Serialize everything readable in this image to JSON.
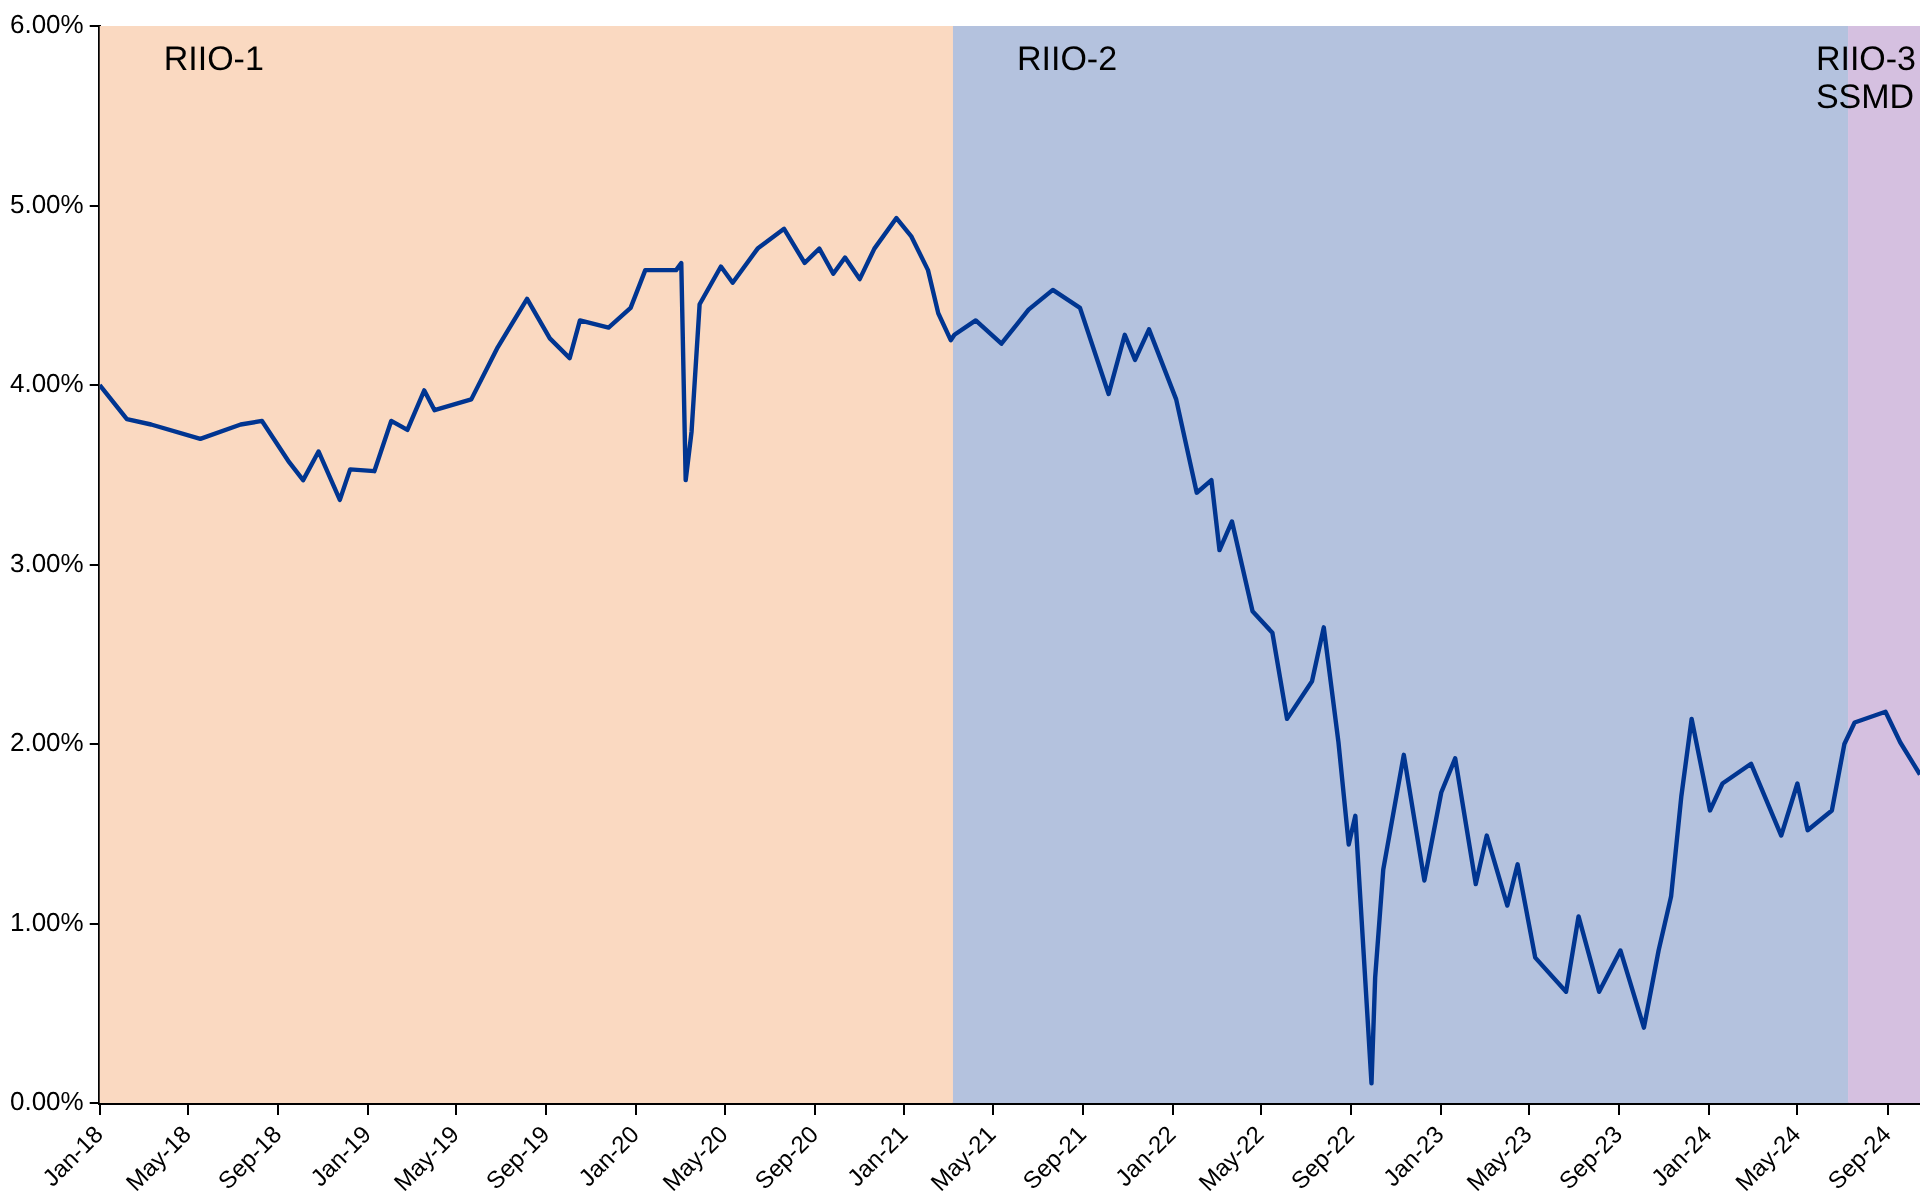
{
  "chart_data": {
    "type": "line",
    "x": [
      "2018-01-01",
      "2018-02-07",
      "2018-03-12",
      "2018-05-18",
      "2018-07-12",
      "2018-08-10",
      "2018-09-16",
      "2018-10-05",
      "2018-10-26",
      "2018-11-24",
      "2018-12-08",
      "2019-01-10",
      "2019-02-02",
      "2019-02-24",
      "2019-03-19",
      "2019-04-02",
      "2019-05-22",
      "2019-06-27",
      "2019-08-06",
      "2019-09-06",
      "2019-10-03",
      "2019-10-17",
      "2019-11-25",
      "2019-12-25",
      "2020-01-14",
      "2020-02-25",
      "2020-03-03",
      "2020-03-09",
      "2020-03-17",
      "2020-03-28",
      "2020-04-26",
      "2020-05-12",
      "2020-06-15",
      "2020-07-21",
      "2020-08-18",
      "2020-09-07",
      "2020-09-26",
      "2020-10-12",
      "2020-11-01",
      "2020-11-21",
      "2020-12-21",
      "2021-01-10",
      "2021-02-02",
      "2021-02-16",
      "2021-03-05",
      "2021-03-10",
      "2021-04-08",
      "2021-05-13",
      "2021-06-19",
      "2021-07-22",
      "2021-08-28",
      "2021-10-06",
      "2021-10-28",
      "2021-11-11",
      "2021-11-30",
      "2022-01-06",
      "2022-02-03",
      "2022-02-23",
      "2022-03-06",
      "2022-03-23",
      "2022-04-20",
      "2022-05-17",
      "2022-06-06",
      "2022-07-10",
      "2022-07-26",
      "2022-08-15",
      "2022-08-29",
      "2022-09-07",
      "2022-09-29",
      "2022-10-04",
      "2022-10-15",
      "2022-11-12",
      "2022-12-10",
      "2023-01-02",
      "2023-01-21",
      "2023-02-18",
      "2023-03-05",
      "2023-04-02",
      "2023-04-16",
      "2023-05-10",
      "2023-06-21",
      "2023-07-08",
      "2023-08-05",
      "2023-09-03",
      "2023-10-05",
      "2023-10-25",
      "2023-11-11",
      "2023-11-25",
      "2023-12-09",
      "2024-01-03",
      "2024-01-20",
      "2024-02-28",
      "2024-04-09",
      "2024-05-01",
      "2024-05-15",
      "2024-06-17",
      "2024-07-04",
      "2024-07-18",
      "2024-08-29",
      "2024-09-18",
      "2024-10-15"
    ],
    "series": [
      {
        "color": "#003591",
        "values": [
          4.0,
          3.81,
          3.78,
          3.7,
          3.78,
          3.8,
          3.57,
          3.47,
          3.63,
          3.36,
          3.53,
          3.52,
          3.8,
          3.75,
          3.97,
          3.86,
          3.92,
          4.21,
          4.48,
          4.26,
          4.15,
          4.36,
          4.32,
          4.43,
          4.64,
          4.64,
          4.68,
          3.47,
          3.74,
          4.45,
          4.66,
          4.57,
          4.76,
          4.87,
          4.68,
          4.76,
          4.62,
          4.71,
          4.59,
          4.76,
          4.93,
          4.83,
          4.64,
          4.4,
          4.25,
          4.28,
          4.36,
          4.23,
          4.42,
          4.53,
          4.43,
          3.95,
          4.28,
          4.14,
          4.31,
          3.92,
          3.4,
          3.47,
          3.08,
          3.24,
          2.74,
          2.62,
          2.14,
          2.35,
          2.65,
          2.01,
          1.44,
          1.6,
          0.11,
          0.7,
          1.3,
          1.94,
          1.24,
          1.73,
          1.92,
          1.22,
          1.49,
          1.1,
          1.33,
          0.81,
          0.62,
          1.04,
          0.62,
          0.85,
          0.42,
          0.85,
          1.15,
          1.71,
          2.14,
          1.63,
          1.78,
          1.89,
          1.49,
          1.78,
          1.52,
          1.63,
          2.0,
          2.12,
          2.18,
          2.01,
          1.83
        ]
      }
    ],
    "xlim": [
      "2018-01-01",
      "2024-10-15"
    ],
    "xticks": [
      {
        "value": "2018-01-01",
        "label": "Jan-18"
      },
      {
        "value": "2018-05-01",
        "label": "May-18"
      },
      {
        "value": "2018-09-01",
        "label": "Sep-18"
      },
      {
        "value": "2019-01-01",
        "label": "Jan-19"
      },
      {
        "value": "2019-05-01",
        "label": "May-19"
      },
      {
        "value": "2019-09-01",
        "label": "Sep-19"
      },
      {
        "value": "2020-01-01",
        "label": "Jan-20"
      },
      {
        "value": "2020-05-01",
        "label": "May-20"
      },
      {
        "value": "2020-09-01",
        "label": "Sep-20"
      },
      {
        "value": "2021-01-01",
        "label": "Jan-21"
      },
      {
        "value": "2021-05-01",
        "label": "May-21"
      },
      {
        "value": "2021-09-01",
        "label": "Sep-21"
      },
      {
        "value": "2022-01-01",
        "label": "Jan-22"
      },
      {
        "value": "2022-05-01",
        "label": "May-22"
      },
      {
        "value": "2022-09-01",
        "label": "Sep-22"
      },
      {
        "value": "2023-01-01",
        "label": "Jan-23"
      },
      {
        "value": "2023-05-01",
        "label": "May-23"
      },
      {
        "value": "2023-09-01",
        "label": "Sep-23"
      },
      {
        "value": "2024-01-01",
        "label": "Jan-24"
      },
      {
        "value": "2024-05-01",
        "label": "May-24"
      },
      {
        "value": "2024-09-01",
        "label": "Sep-24"
      }
    ],
    "ylim": [
      0,
      6
    ],
    "yticks": [
      {
        "value": 0,
        "label": "0.00%"
      },
      {
        "value": 1,
        "label": "1.00%"
      },
      {
        "value": 2,
        "label": "2.00%"
      },
      {
        "value": 3,
        "label": "3.00%"
      },
      {
        "value": 4,
        "label": "4.00%"
      },
      {
        "value": 5,
        "label": "5.00%"
      },
      {
        "value": 6,
        "label": "6.00%"
      }
    ],
    "bands": [
      {
        "axis": "x",
        "from": "2018-01-01",
        "to": "2021-03-08",
        "label": "RIIO-1",
        "color": "#fad9c1"
      },
      {
        "axis": "x",
        "from": "2021-03-08",
        "to": "2024-07-09",
        "label": "RIIO-2",
        "color": "#b4c2de"
      },
      {
        "axis": "x",
        "from": "2024-07-09",
        "to": "2024-10-15",
        "label": "RIIO-3\nSSMD",
        "color": "#d5c0e0"
      }
    ],
    "grid": false,
    "legend": false,
    "marker": "none",
    "line_style": "solid"
  }
}
